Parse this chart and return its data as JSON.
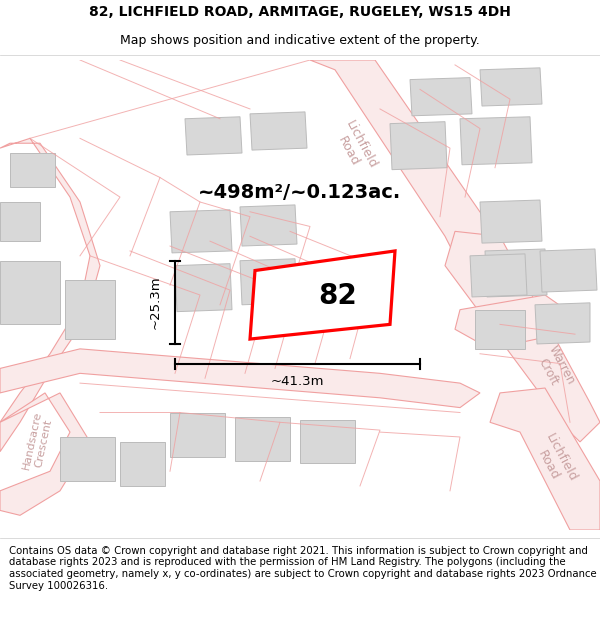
{
  "title_line1": "82, LICHFIELD ROAD, ARMITAGE, RUGELEY, WS15 4DH",
  "title_line2": "Map shows position and indicative extent of the property.",
  "footer_text": "Contains OS data © Crown copyright and database right 2021. This information is subject to Crown copyright and database rights 2023 and is reproduced with the permission of HM Land Registry. The polygons (including the associated geometry, namely x, y co-ordinates) are subject to Crown copyright and database rights 2023 Ordnance Survey 100026316.",
  "area_label": "~498m²/~0.123ac.",
  "width_label": "~41.3m",
  "height_label": "~25.3m",
  "plot_number": "82",
  "road_color": "#f0a0a0",
  "road_fill": "#faeaea",
  "building_color": "#d8d8d8",
  "building_edge": "#bbbbbb",
  "highlight_color": "#ff0000",
  "road_label_color": "#c8a0a0",
  "title_fontsize": 10.5,
  "footer_fontsize": 7.3,
  "area_fontsize": 14
}
